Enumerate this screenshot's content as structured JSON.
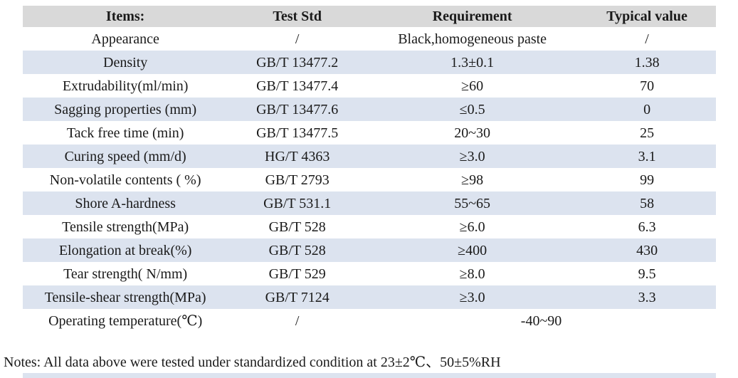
{
  "table": {
    "columns": [
      {
        "label": "Items:"
      },
      {
        "label": "Test Std"
      },
      {
        "label": "Requirement"
      },
      {
        "label": "Typical value"
      }
    ],
    "rows": [
      {
        "cells": [
          "Appearance",
          "/",
          "Black,homogeneous paste",
          "/"
        ]
      },
      {
        "cells": [
          "Density",
          "GB/T 13477.2",
          "1.3±0.1",
          "1.38"
        ]
      },
      {
        "cells": [
          "Extrudability(ml/min)",
          "GB/T 13477.4",
          "≥60",
          "70"
        ]
      },
      {
        "cells": [
          "Sagging properties (mm)",
          "GB/T 13477.6",
          "≤0.5",
          "0"
        ]
      },
      {
        "cells": [
          "Tack free time (min)",
          "GB/T 13477.5",
          "20~30",
          "25"
        ]
      },
      {
        "cells": [
          "Curing speed (mm/d)",
          "HG/T 4363",
          "≥3.0",
          "3.1"
        ]
      },
      {
        "cells": [
          "Non-volatile contents ( %)",
          "GB/T 2793",
          "≥98",
          "99"
        ]
      },
      {
        "cells": [
          "Shore A-hardness",
          "GB/T 531.1",
          "55~65",
          "58"
        ]
      },
      {
        "cells": [
          "Tensile strength(MPa)",
          "GB/T 528",
          "≥6.0",
          "6.3"
        ]
      },
      {
        "cells": [
          "Elongation at break(%)",
          "GB/T 528",
          "≥400",
          "430"
        ]
      },
      {
        "cells": [
          "Tear strength( N/mm)",
          "GB/T 529",
          "≥8.0",
          "9.5"
        ]
      },
      {
        "cells": [
          "Tensile-shear strength(MPa)",
          "GB/T 7124",
          "≥3.0",
          "3.3"
        ]
      },
      {
        "cells": [
          "Operating temperature(℃)",
          "/",
          {
            "text": "-40~90",
            "colspan": 2
          }
        ]
      }
    ]
  },
  "notes": "Notes: All data above were tested under standardized condition at 23±2℃、50±5%RH",
  "colors": {
    "header_bg": "#d9d9d9",
    "stripe_bg": "#dce3ef",
    "text": "#1a1a1a"
  }
}
